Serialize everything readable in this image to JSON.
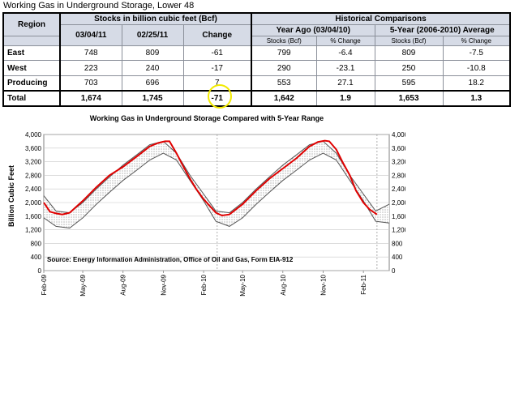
{
  "page_title": "Working Gas in Underground Storage, Lower 48",
  "table": {
    "headers": {
      "region": "Region",
      "stocks_group": "Stocks in billion cubic feet (Bcf)",
      "historical_group": "Historical Comparisons",
      "date1": "03/04/11",
      "date2": "02/25/11",
      "change": "Change",
      "year_ago": "Year Ago (03/04/10)",
      "five_year": "5-Year (2006-2010) Average",
      "year_ago_stocks": "Stocks (Bcf)",
      "year_ago_pct": "% Change",
      "five_year_stocks": "Stocks (Bcf)",
      "five_year_pct": "% Change"
    },
    "rows": [
      {
        "region": "East",
        "d1": "748",
        "d2": "809",
        "change": "-61",
        "ya_stocks": "799",
        "ya_pct": "-6.4",
        "fy_stocks": "809",
        "fy_pct": "-7.5"
      },
      {
        "region": "West",
        "d1": "223",
        "d2": "240",
        "change": "-17",
        "ya_stocks": "290",
        "ya_pct": "-23.1",
        "fy_stocks": "250",
        "fy_pct": "-10.8"
      },
      {
        "region": "Producing",
        "d1": "703",
        "d2": "696",
        "change": "7",
        "ya_stocks": "553",
        "ya_pct": "27.1",
        "fy_stocks": "595",
        "fy_pct": "18.2"
      },
      {
        "region": "Total",
        "d1": "1,674",
        "d2": "1,745",
        "change": "-71",
        "ya_stocks": "1,642",
        "ya_pct": "1.9",
        "fy_stocks": "1,653",
        "fy_pct": "1.3"
      }
    ]
  },
  "chart_data": {
    "type": "line",
    "title": "Working Gas in Underground Storage Compared with 5-Year Range",
    "ylabel": "Billion Cubic Feet",
    "source_note": "Source:  Energy Information Administration, Office of Oil and Gas, Form EIA-912",
    "ylim": [
      0,
      4000
    ],
    "yticks": [
      "0",
      "400",
      "800",
      "1,200",
      "1,600",
      "2,000",
      "2,400",
      "2,800",
      "3,200",
      "3,600",
      "4,000"
    ],
    "ytick_values": [
      0,
      400,
      800,
      1200,
      1600,
      2000,
      2400,
      2800,
      3200,
      3600,
      4000
    ],
    "xlim": [
      "2009-02-01",
      "2011-04-01"
    ],
    "xticks": [
      "Feb-09",
      "May-09",
      "Aug-09",
      "Nov-09",
      "Feb-10",
      "May-10",
      "Aug-10",
      "Nov-10",
      "Feb-11"
    ],
    "xtick_dates": [
      "2009-02-01",
      "2009-05-01",
      "2009-08-01",
      "2009-11-01",
      "2010-02-01",
      "2010-05-01",
      "2010-08-01",
      "2010-11-01",
      "2011-02-01"
    ],
    "reference_lines": [
      "2010-03-04",
      "2011-03-04"
    ],
    "grid": true,
    "colors": {
      "stocks": "#e00000",
      "range_band": "#9a9a9a",
      "range_edge": "#555555"
    },
    "series": [
      {
        "key": "stocks",
        "x": [
          "2009-02-01",
          "2009-02-15",
          "2009-03-01",
          "2009-03-15",
          "2009-04-01",
          "2009-05-01",
          "2009-06-01",
          "2009-07-01",
          "2009-08-01",
          "2009-09-01",
          "2009-10-01",
          "2009-10-20",
          "2009-11-05",
          "2009-11-15",
          "2009-12-01",
          "2009-12-15",
          "2010-01-01",
          "2010-01-15",
          "2010-02-01",
          "2010-02-15",
          "2010-03-01",
          "2010-03-15",
          "2010-04-01",
          "2010-05-01",
          "2010-06-01",
          "2010-07-01",
          "2010-08-01",
          "2010-09-01",
          "2010-10-01",
          "2010-10-20",
          "2010-11-05",
          "2010-11-15",
          "2010-12-01",
          "2010-12-15",
          "2011-01-01",
          "2011-01-15",
          "2011-02-01",
          "2011-02-15",
          "2011-03-04"
        ],
        "values": [
          2000,
          1730,
          1680,
          1650,
          1700,
          2050,
          2450,
          2800,
          3050,
          3350,
          3650,
          3750,
          3800,
          3800,
          3450,
          3100,
          2700,
          2400,
          2100,
          1900,
          1700,
          1620,
          1650,
          1950,
          2350,
          2700,
          3000,
          3300,
          3650,
          3780,
          3820,
          3800,
          3560,
          3200,
          2800,
          2350,
          2000,
          1800,
          1650
        ]
      },
      {
        "key": "range_max",
        "x": [
          "2009-02-01",
          "2009-03-01",
          "2009-04-01",
          "2009-05-01",
          "2009-06-01",
          "2009-07-01",
          "2009-08-01",
          "2009-09-01",
          "2009-10-01",
          "2009-11-01",
          "2009-12-01",
          "2010-01-01",
          "2010-02-01",
          "2010-03-01",
          "2010-04-01",
          "2010-05-01",
          "2010-06-01",
          "2010-07-01",
          "2010-08-01",
          "2010-09-01",
          "2010-10-01",
          "2010-11-01",
          "2010-12-01",
          "2011-01-01",
          "2011-02-01",
          "2011-03-01",
          "2011-04-01"
        ],
        "values": [
          2200,
          1750,
          1700,
          2000,
          2400,
          2750,
          3100,
          3400,
          3700,
          3800,
          3450,
          2800,
          2250,
          1750,
          1700,
          2000,
          2400,
          2750,
          3100,
          3400,
          3700,
          3800,
          3450,
          2800,
          2250,
          1750,
          1950
        ]
      },
      {
        "key": "range_min",
        "x": [
          "2009-02-01",
          "2009-03-01",
          "2009-04-01",
          "2009-05-01",
          "2009-06-01",
          "2009-07-01",
          "2009-08-01",
          "2009-09-01",
          "2009-10-01",
          "2009-11-01",
          "2009-12-01",
          "2010-01-01",
          "2010-02-01",
          "2010-03-01",
          "2010-04-01",
          "2010-05-01",
          "2010-06-01",
          "2010-07-01",
          "2010-08-01",
          "2010-09-01",
          "2010-10-01",
          "2010-11-01",
          "2010-12-01",
          "2011-01-01",
          "2011-02-01",
          "2011-03-01",
          "2011-04-01"
        ],
        "values": [
          1550,
          1300,
          1250,
          1550,
          1950,
          2300,
          2650,
          2950,
          3250,
          3450,
          3250,
          2650,
          2050,
          1450,
          1300,
          1550,
          1950,
          2300,
          2650,
          2950,
          3250,
          3450,
          3250,
          2650,
          2050,
          1450,
          1400
        ]
      }
    ]
  }
}
